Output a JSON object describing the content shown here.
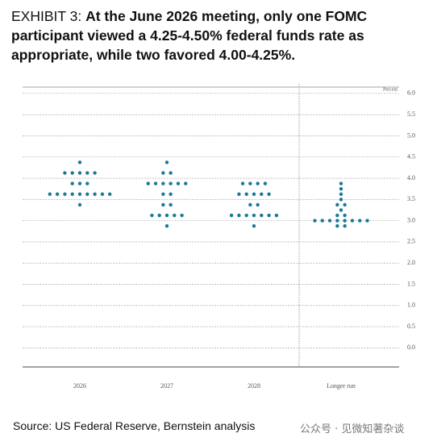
{
  "chart_data": {
    "type": "dot",
    "exhibit": "EXHIBIT 3:",
    "title": "At the June 2026 meeting, only one FOMC participant viewed a 4.25-4.50% federal funds rate as appropriate, while two favored 4.00-4.25%.",
    "y_label": "Percent",
    "categories": [
      "2026",
      "2027",
      "2028",
      "Longer run"
    ],
    "dots": [
      [
        4.375,
        4.125,
        4.125,
        4.125,
        4.125,
        4.125,
        3.875,
        3.875,
        3.875,
        3.625,
        3.625,
        3.625,
        3.625,
        3.625,
        3.625,
        3.625,
        3.625,
        3.625,
        3.375
      ],
      [
        4.375,
        4.125,
        4.125,
        3.875,
        3.875,
        3.875,
        3.875,
        3.875,
        3.875,
        3.625,
        3.625,
        3.375,
        3.375,
        3.125,
        3.125,
        3.125,
        3.125,
        3.125,
        2.875
      ],
      [
        3.875,
        3.875,
        3.875,
        3.875,
        3.625,
        3.625,
        3.625,
        3.625,
        3.625,
        3.375,
        3.375,
        3.125,
        3.125,
        3.125,
        3.125,
        3.125,
        3.125,
        3.125,
        2.875
      ],
      [
        3.875,
        3.75,
        3.625,
        3.5,
        3.375,
        3.375,
        3.25,
        3.125,
        3.125,
        3.0,
        3.0,
        3.0,
        3.0,
        3.0,
        3.0,
        3.0,
        3.0,
        2.875,
        2.875
      ]
    ],
    "color": "#1b7896",
    "ylim": [
      -0.45,
      6.15
    ],
    "yticks": [
      {
        "value": 0,
        "label": "0.0"
      },
      {
        "value": 0.5,
        "label": "0.5"
      },
      {
        "value": 1,
        "label": "1.0"
      },
      {
        "value": 1.5,
        "label": "1.5"
      },
      {
        "value": 2,
        "label": "2.0"
      },
      {
        "value": 2.5,
        "label": "2.5"
      },
      {
        "value": 3,
        "label": "3.0"
      },
      {
        "value": 3.5,
        "label": "3.5"
      },
      {
        "value": 4,
        "label": "4.0"
      },
      {
        "value": 4.5,
        "label": "4.5"
      },
      {
        "value": 5,
        "label": "5.0"
      },
      {
        "value": 5.5,
        "label": "5.5"
      },
      {
        "value": 6,
        "label": "6.0"
      }
    ],
    "grid": true,
    "source": "Source: US Federal Reserve, Bernstein analysis",
    "watermark": "公众号 · 见微知著杂谈"
  }
}
